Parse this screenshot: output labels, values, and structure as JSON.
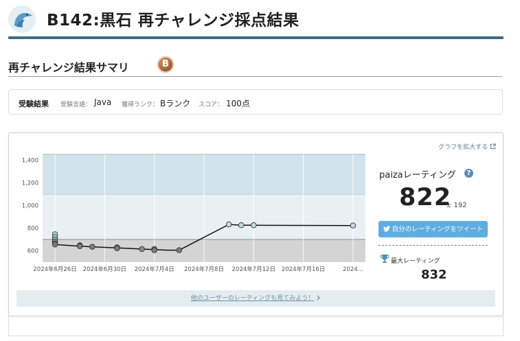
{
  "header": {
    "title": "B142:黒石 再チャレンジ採点結果"
  },
  "summary_section": {
    "title": "再チャレンジ結果サマリ",
    "rank_badge": "B"
  },
  "summary": {
    "heading": "受験結果",
    "language_label": "受験言語：",
    "language_value": "Java",
    "rank_label": "獲得ランク：",
    "rank_value": "Bランク",
    "score_label": "スコア：",
    "score_value": "100点"
  },
  "graph_panel": {
    "expand_link": "グラフを拡大する",
    "others_link": "他のユーザーのレーティングも見てみよう！",
    "accent": "#5dade2"
  },
  "rating": {
    "title": "paizaレーティング",
    "value": "822",
    "plus_minus": "± 192",
    "tweet_button": "自分のレーティングをツイート",
    "max_label": "最大レーティング",
    "max_value": "832"
  },
  "chart_data": {
    "type": "line",
    "ylim": [
      500,
      1450
    ],
    "yticks": [
      600,
      800,
      1000,
      1200,
      1400
    ],
    "ytick_labels": [
      "600",
      "800",
      "1,000",
      "1,200",
      "1,400"
    ],
    "xlim": [
      "2024-06-25",
      "2024-07-21"
    ],
    "xticks": [
      "2024-06-26",
      "2024-06-30",
      "2024-07-04",
      "2024-07-08",
      "2024-07-12",
      "2024-07-16",
      "2024-07-20"
    ],
    "xtick_labels": [
      "2024年6月26日",
      "2024年6月30日",
      "2024年7月4日",
      "2024年7月8日",
      "2024年7月12日",
      "2024年7月16日",
      "2024..."
    ],
    "bands": [
      {
        "from": 500,
        "to": 700,
        "color": "#d4d4d4"
      },
      {
        "from": 700,
        "to": 1100,
        "color": "#e9f0f4"
      },
      {
        "from": 1100,
        "to": 1450,
        "color": "#d2e3ec"
      }
    ],
    "line_points": [
      {
        "x": "2024-06-26",
        "y": 655
      },
      {
        "x": "2024-06-28",
        "y": 640
      },
      {
        "x": "2024-06-29",
        "y": 635
      },
      {
        "x": "2024-07-01",
        "y": 625
      },
      {
        "x": "2024-07-03",
        "y": 615
      },
      {
        "x": "2024-07-04",
        "y": 610
      },
      {
        "x": "2024-07-05",
        "y": 605
      },
      {
        "x": "2024-07-06",
        "y": 605
      },
      {
        "x": "2024-07-10",
        "y": 832
      },
      {
        "x": "2024-07-11",
        "y": 825
      },
      {
        "x": "2024-07-12",
        "y": 825
      },
      {
        "x": "2024-07-20",
        "y": 822
      }
    ],
    "markers": [
      {
        "x": "2024-06-26",
        "y": 745,
        "color": "#b9d6df"
      },
      {
        "x": "2024-06-26",
        "y": 720,
        "color": "#b9d6df"
      },
      {
        "x": "2024-06-26",
        "y": 700,
        "color": "#9bb8c2"
      },
      {
        "x": "2024-06-26",
        "y": 680,
        "color": "#8aa1a8"
      },
      {
        "x": "2024-06-26",
        "y": 665,
        "color": "#7a8b90"
      },
      {
        "x": "2024-06-26",
        "y": 655,
        "color": "#7c7c7c"
      },
      {
        "x": "2024-06-28",
        "y": 648,
        "color": "#8a8a8a"
      },
      {
        "x": "2024-06-28",
        "y": 640,
        "color": "#7c7c7c"
      },
      {
        "x": "2024-06-29",
        "y": 635,
        "color": "#7c7c7c"
      },
      {
        "x": "2024-07-01",
        "y": 630,
        "color": "#8a8a8a"
      },
      {
        "x": "2024-07-01",
        "y": 622,
        "color": "#7c7c7c"
      },
      {
        "x": "2024-07-03",
        "y": 615,
        "color": "#8a8a8a"
      },
      {
        "x": "2024-07-04",
        "y": 615,
        "color": "#8a8a8a"
      },
      {
        "x": "2024-07-04",
        "y": 605,
        "color": "#7c7c7c"
      },
      {
        "x": "2024-07-06",
        "y": 605,
        "color": "#7c7c7c"
      },
      {
        "x": "2024-07-10",
        "y": 832,
        "color": "#c4d8df"
      },
      {
        "x": "2024-07-11",
        "y": 825,
        "color": "#c4d8df"
      },
      {
        "x": "2024-07-12",
        "y": 825,
        "color": "#c4d8df"
      },
      {
        "x": "2024-07-20",
        "y": 822,
        "color": "#c4d8df"
      }
    ]
  }
}
